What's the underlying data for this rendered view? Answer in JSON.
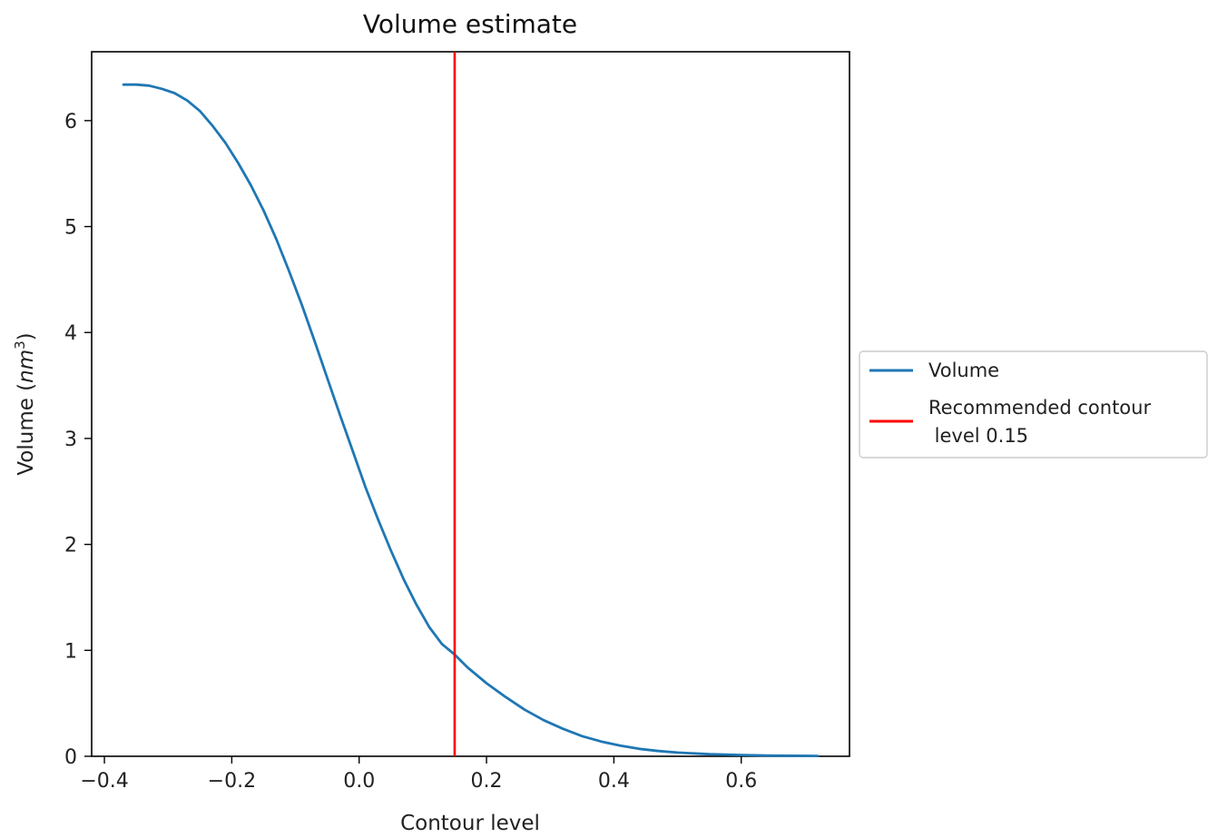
{
  "chart_data": {
    "type": "line",
    "title": "Volume estimate",
    "xlabel": "Contour level",
    "ylabel": "Volume (nm3)",
    "ylabel_parts": {
      "prefix": "Volume (",
      "unit": "nm",
      "superscript": "3",
      "suffix": ")"
    },
    "xlim": [
      -0.42,
      0.77
    ],
    "ylim": [
      0,
      6.65
    ],
    "x_ticks": [
      -0.4,
      -0.2,
      0.0,
      0.2,
      0.4,
      0.6
    ],
    "x_tick_labels": [
      "−0.4",
      "−0.2",
      "0.0",
      "0.2",
      "0.4",
      "0.6"
    ],
    "y_ticks": [
      0,
      1,
      2,
      3,
      4,
      5,
      6
    ],
    "y_tick_labels": [
      "0",
      "1",
      "2",
      "3",
      "4",
      "5",
      "6"
    ],
    "grid": false,
    "legend_position": "outside-right",
    "series": [
      {
        "name": "Volume",
        "color": "#1f77b4",
        "x": [
          -0.37,
          -0.35,
          -0.33,
          -0.31,
          -0.29,
          -0.27,
          -0.25,
          -0.23,
          -0.21,
          -0.19,
          -0.17,
          -0.15,
          -0.13,
          -0.11,
          -0.09,
          -0.07,
          -0.05,
          -0.03,
          -0.01,
          0.01,
          0.03,
          0.05,
          0.07,
          0.09,
          0.11,
          0.13,
          0.15,
          0.17,
          0.2,
          0.23,
          0.26,
          0.29,
          0.32,
          0.35,
          0.38,
          0.41,
          0.44,
          0.47,
          0.5,
          0.55,
          0.6,
          0.65,
          0.72
        ],
        "y": [
          6.34,
          6.34,
          6.33,
          6.3,
          6.26,
          6.19,
          6.09,
          5.95,
          5.79,
          5.6,
          5.39,
          5.15,
          4.88,
          4.58,
          4.26,
          3.92,
          3.57,
          3.22,
          2.88,
          2.54,
          2.23,
          1.94,
          1.67,
          1.43,
          1.22,
          1.06,
          0.96,
          0.84,
          0.69,
          0.56,
          0.44,
          0.34,
          0.26,
          0.19,
          0.14,
          0.1,
          0.07,
          0.05,
          0.035,
          0.02,
          0.012,
          0.006,
          0.003
        ]
      },
      {
        "name": "Recommended contour\n level 0.15",
        "color": "#ff0000",
        "type": "vline",
        "x": 0.15
      }
    ],
    "legend": [
      {
        "label_lines": [
          "Volume"
        ],
        "color": "#1f77b4"
      },
      {
        "label_lines": [
          "Recommended contour",
          " level 0.15"
        ],
        "color": "#ff0000"
      }
    ]
  }
}
